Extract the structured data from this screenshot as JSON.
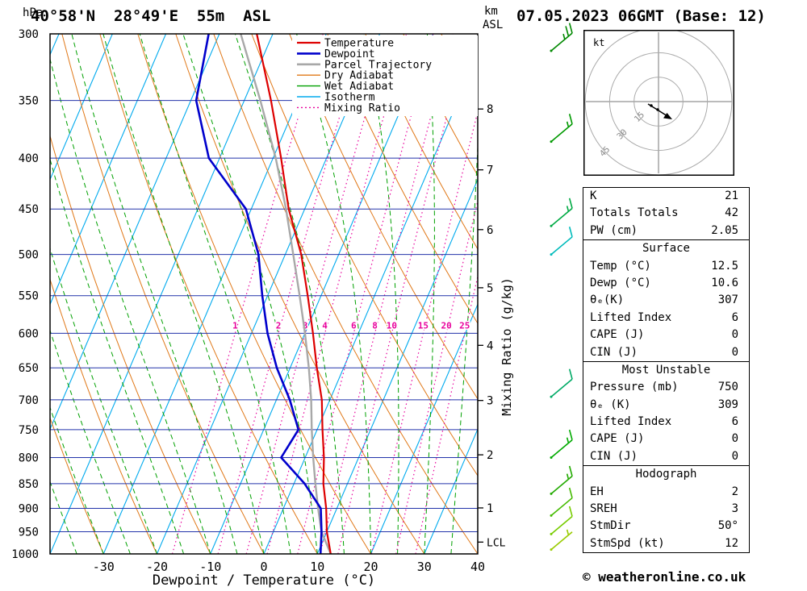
{
  "header": {
    "station_title": "40°58'N  28°49'E  55m  ASL",
    "datetime_title": "07.05.2023 06GMT (Base: 12)"
  },
  "axes": {
    "pressure_unit": "hPa",
    "altitude_unit_line1": "km",
    "altitude_unit_line2": "ASL",
    "x_title": "Dewpoint / Temperature (°C)",
    "right_axis_title": "Mixing Ratio (g/kg)",
    "lcl_label": "LCL"
  },
  "legend": {
    "items": [
      {
        "label": "Temperature",
        "color": "#dd0000",
        "width": 2.2,
        "dash": ""
      },
      {
        "label": "Dewpoint",
        "color": "#0000cc",
        "width": 2.6,
        "dash": ""
      },
      {
        "label": "Parcel Trajectory",
        "color": "#a8a8a8",
        "width": 2.6,
        "dash": ""
      },
      {
        "label": "Dry Adiabat",
        "color": "#e07818",
        "width": 1.4,
        "dash": ""
      },
      {
        "label": "Wet Adiabat",
        "color": "#00a000",
        "width": 1.4,
        "dash": ""
      },
      {
        "label": "Isotherm",
        "color": "#00aaee",
        "width": 1.4,
        "dash": ""
      },
      {
        "label": "Mixing Ratio",
        "color": "#e8009c",
        "width": 1.4,
        "dash": "2 3"
      }
    ]
  },
  "chart_data": {
    "type": "skew-t-log-p",
    "pressure_axis": {
      "min": 300,
      "max": 1000,
      "ticks": [
        300,
        350,
        400,
        450,
        500,
        550,
        600,
        650,
        700,
        750,
        800,
        850,
        900,
        950,
        1000
      ]
    },
    "temp_axis": {
      "min": -40,
      "max": 40,
      "ticks": [
        -30,
        -20,
        -10,
        0,
        10,
        20,
        30,
        40
      ]
    },
    "sounding": {
      "pressure_hpa": [
        1000,
        950,
        900,
        850,
        800,
        750,
        700,
        650,
        600,
        550,
        500,
        450,
        400,
        350,
        300
      ],
      "temperature_c": [
        12.5,
        10,
        8,
        5.5,
        3.5,
        1,
        -1.5,
        -5,
        -8.5,
        -12.5,
        -17,
        -23,
        -28.5,
        -35,
        -43
      ],
      "dewpoint_c": [
        10.6,
        9,
        7,
        2,
        -4.5,
        -3.5,
        -7.5,
        -12.5,
        -17,
        -21,
        -25,
        -31,
        -42,
        -49,
        -52
      ],
      "parcel_c": [
        12.5,
        9,
        6.5,
        4,
        1.5,
        -1,
        -3.5,
        -6.5,
        -10,
        -14,
        -18.5,
        -23.5,
        -29.5,
        -37,
        -46
      ]
    },
    "mixing_ratio_labels": [
      1,
      2,
      3,
      4,
      6,
      8,
      10,
      15,
      20,
      25
    ],
    "km_ticks": [
      {
        "km": 8,
        "p": 357
      },
      {
        "km": 7,
        "p": 411
      },
      {
        "km": 6,
        "p": 472
      },
      {
        "km": 5,
        "p": 540
      },
      {
        "km": 4,
        "p": 617
      },
      {
        "km": 3,
        "p": 701
      },
      {
        "km": 2,
        "p": 795
      },
      {
        "km": 1,
        "p": 899
      }
    ],
    "lcl_pressure": 973,
    "winds": [
      {
        "p": 312,
        "kt": 25,
        "dir_deg": 50,
        "color": "#008800"
      },
      {
        "p": 385,
        "kt": 15,
        "dir_deg": 50,
        "color": "#009900"
      },
      {
        "p": 468,
        "kt": 15,
        "dir_deg": 50,
        "color": "#00aa44"
      },
      {
        "p": 500,
        "kt": 10,
        "dir_deg": 50,
        "color": "#00bbbb"
      },
      {
        "p": 695,
        "kt": 10,
        "dir_deg": 50,
        "color": "#00aa66"
      },
      {
        "p": 800,
        "kt": 15,
        "dir_deg": 50,
        "color": "#00aa00"
      },
      {
        "p": 870,
        "kt": 15,
        "dir_deg": 50,
        "color": "#22aa00"
      },
      {
        "p": 915,
        "kt": 10,
        "dir_deg": 50,
        "color": "#44bb00"
      },
      {
        "p": 955,
        "kt": 10,
        "dir_deg": 50,
        "color": "#77cc00"
      },
      {
        "p": 990,
        "kt": 5,
        "dir_deg": 50,
        "color": "#99cc00"
      }
    ],
    "colors": {
      "isobar": "#2233aa",
      "isotherm": "#00aaee",
      "dry_adiabat": "#e07818",
      "wet_adiabat": "#00a000",
      "mixing_ratio": "#e8009c",
      "temperature": "#dd0000",
      "dewpoint": "#0000cc",
      "parcel": "#a8a8a8"
    }
  },
  "hodograph": {
    "unit_label": "kt",
    "rings_kt": [
      15,
      30,
      45
    ],
    "ring_labels": [
      "15",
      "30",
      "45"
    ]
  },
  "tables": [
    {
      "title": null,
      "rows": [
        [
          "K",
          "21"
        ],
        [
          "Totals Totals",
          "42"
        ],
        [
          "PW (cm)",
          "2.05"
        ]
      ]
    },
    {
      "title": "Surface",
      "rows": [
        [
          "Temp (°C)",
          "12.5"
        ],
        [
          "Dewp (°C)",
          "10.6"
        ],
        [
          "θₑ(K)",
          "307"
        ],
        [
          "Lifted Index",
          "6"
        ],
        [
          "CAPE (J)",
          "0"
        ],
        [
          "CIN (J)",
          "0"
        ]
      ]
    },
    {
      "title": "Most Unstable",
      "rows": [
        [
          "Pressure (mb)",
          "750"
        ],
        [
          "θₑ (K)",
          "309"
        ],
        [
          "Lifted Index",
          "6"
        ],
        [
          "CAPE (J)",
          "0"
        ],
        [
          "CIN (J)",
          "0"
        ]
      ]
    },
    {
      "title": "Hodograph",
      "rows": [
        [
          "EH",
          "2"
        ],
        [
          "SREH",
          "3"
        ],
        [
          "StmDir",
          "50°"
        ],
        [
          "StmSpd (kt)",
          "12"
        ]
      ]
    }
  ],
  "footer": {
    "copyright": "© weatheronline.co.uk"
  }
}
